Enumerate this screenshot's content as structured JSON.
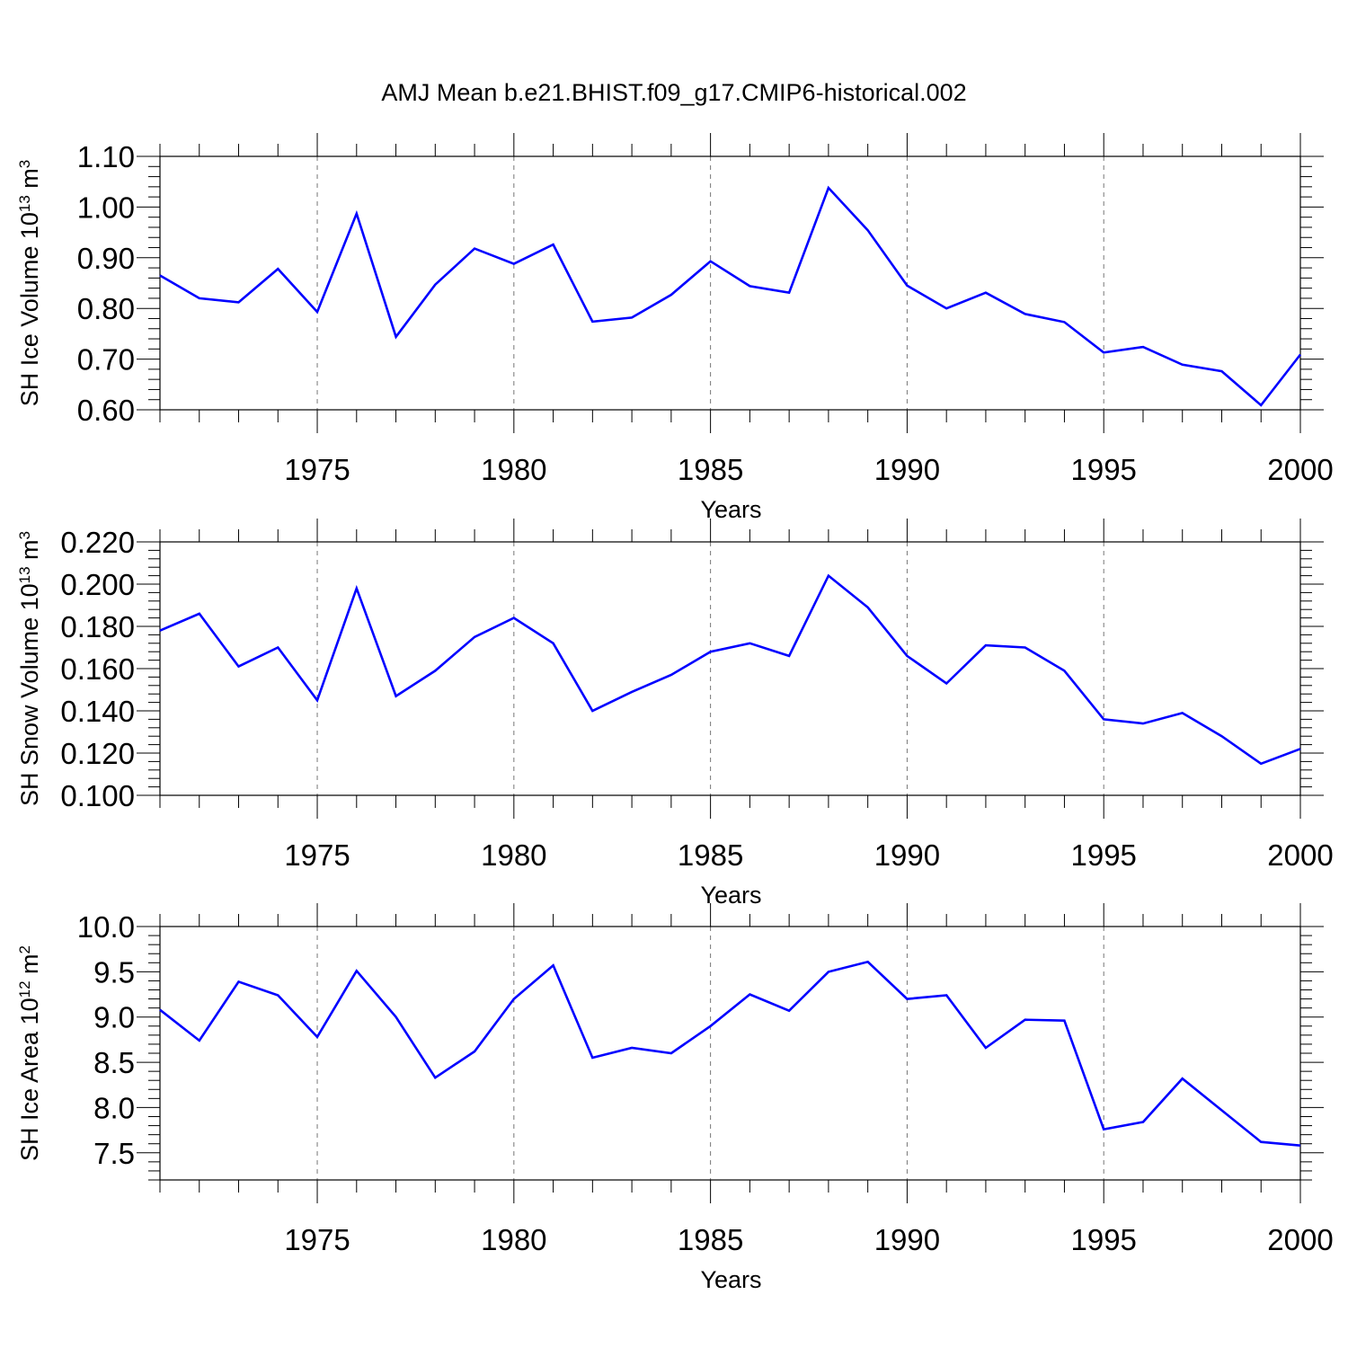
{
  "title": "AMJ Mean b.e21.BHIST.f09_g17.CMIP6-historical.002",
  "colors": {
    "series": "#0000ff",
    "axis": "#000000",
    "grid": "#777777",
    "background": "#ffffff"
  },
  "chart_data": [
    {
      "type": "line",
      "xlabel": "Years",
      "ylabel": "SH Ice Volume 10<sup>13</sup> m<sup>3</sup>",
      "xlim": [
        1971,
        2000
      ],
      "ylim": [
        0.6,
        1.1
      ],
      "xticks": [
        "1975",
        "1980",
        "1985",
        "1990",
        "1995",
        "2000"
      ],
      "yticks": [
        "0.60",
        "0.70",
        "0.80",
        "0.90",
        "1.00",
        "1.10"
      ],
      "grid": "vertical dashed at major x ticks",
      "x": [
        1971,
        1972,
        1973,
        1974,
        1975,
        1976,
        1977,
        1978,
        1979,
        1980,
        1981,
        1982,
        1983,
        1984,
        1985,
        1986,
        1987,
        1988,
        1989,
        1990,
        1991,
        1992,
        1993,
        1994,
        1995,
        1996,
        1997,
        1998,
        1999,
        2000
      ],
      "series": [
        {
          "values": [
            0.865,
            0.82,
            0.812,
            0.878,
            0.793,
            0.987,
            0.744,
            0.847,
            0.918,
            0.888,
            0.926,
            0.774,
            0.782,
            0.827,
            0.893,
            0.844,
            0.831,
            1.038,
            0.954,
            0.845,
            0.8,
            0.831,
            0.789,
            0.773,
            0.713,
            0.724,
            0.689,
            0.676,
            0.609,
            0.709
          ]
        }
      ]
    },
    {
      "type": "line",
      "xlabel": "Years",
      "ylabel": "SH Snow Volume 10<sup>13</sup> m<sup>3</sup>",
      "xlim": [
        1971,
        2000
      ],
      "ylim": [
        0.1,
        0.22
      ],
      "xticks": [
        "1975",
        "1980",
        "1985",
        "1990",
        "1995",
        "2000"
      ],
      "yticks": [
        "0.100",
        "0.120",
        "0.140",
        "0.160",
        "0.180",
        "0.200",
        "0.220"
      ],
      "grid": "vertical dashed at major x ticks",
      "x": [
        1971,
        1972,
        1973,
        1974,
        1975,
        1976,
        1977,
        1978,
        1979,
        1980,
        1981,
        1982,
        1983,
        1984,
        1985,
        1986,
        1987,
        1988,
        1989,
        1990,
        1991,
        1992,
        1993,
        1994,
        1995,
        1996,
        1997,
        1998,
        1999,
        2000
      ],
      "series": [
        {
          "values": [
            0.178,
            0.186,
            0.161,
            0.17,
            0.145,
            0.198,
            0.147,
            0.159,
            0.175,
            0.184,
            0.172,
            0.14,
            0.149,
            0.157,
            0.168,
            0.172,
            0.166,
            0.204,
            0.189,
            0.166,
            0.153,
            0.171,
            0.17,
            0.159,
            0.136,
            0.134,
            0.139,
            0.128,
            0.115,
            0.122
          ]
        }
      ]
    },
    {
      "type": "line",
      "xlabel": "Years",
      "ylabel": "SH Ice Area 10<sup>12</sup> m<sup>2</sup>",
      "xlim": [
        1971,
        2000
      ],
      "ylim": [
        7.2,
        10.0
      ],
      "xticks": [
        "1975",
        "1980",
        "1985",
        "1990",
        "1995",
        "2000"
      ],
      "yticks": [
        "7.5",
        "8.0",
        "8.5",
        "9.0",
        "9.5",
        "10.0"
      ],
      "grid": "vertical dashed at major x ticks",
      "x": [
        1971,
        1972,
        1973,
        1974,
        1975,
        1976,
        1977,
        1978,
        1979,
        1980,
        1981,
        1982,
        1983,
        1984,
        1985,
        1986,
        1987,
        1988,
        1989,
        1990,
        1991,
        1992,
        1993,
        1994,
        1995,
        1996,
        1997,
        1998,
        1999,
        2000
      ],
      "series": [
        {
          "values": [
            9.08,
            8.74,
            9.39,
            9.24,
            8.78,
            9.51,
            9.0,
            8.33,
            8.62,
            9.2,
            9.57,
            8.55,
            8.66,
            8.6,
            8.9,
            9.25,
            9.07,
            9.5,
            9.61,
            9.2,
            9.24,
            8.66,
            8.97,
            8.96,
            7.76,
            7.84,
            8.32,
            7.97,
            7.62,
            7.58
          ]
        }
      ]
    }
  ]
}
